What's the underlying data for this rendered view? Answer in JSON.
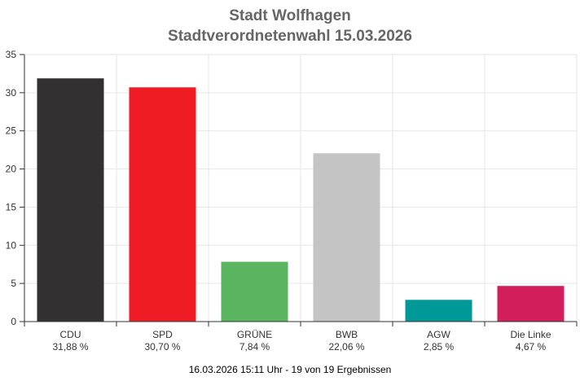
{
  "title": "Stadt Wolfhagen",
  "subtitle": "Stadtverordnetenwahl 15.03.2026",
  "footer": "16.03.2026 15:11 Uhr - 19 von 19 Ergebnissen",
  "chart_data": {
    "type": "bar",
    "categories": [
      "CDU",
      "SPD",
      "GRÜNE",
      "BWB",
      "AGW",
      "Die Linke"
    ],
    "values": [
      31.88,
      30.7,
      7.84,
      22.06,
      2.85,
      4.67
    ],
    "value_labels": [
      "31,88 %",
      "30,70 %",
      "7,84 %",
      "22,06 %",
      "2,85 %",
      "4,67 %"
    ],
    "colors": [
      "#333031",
      "#ef1c26",
      "#59b560",
      "#c4c4c4",
      "#009998",
      "#d21e5a"
    ],
    "ylim": [
      0,
      35
    ],
    "yticks": [
      0,
      5,
      10,
      15,
      20,
      25,
      30,
      35
    ],
    "grid": true,
    "legend": "none",
    "xlabel": "",
    "ylabel": ""
  }
}
